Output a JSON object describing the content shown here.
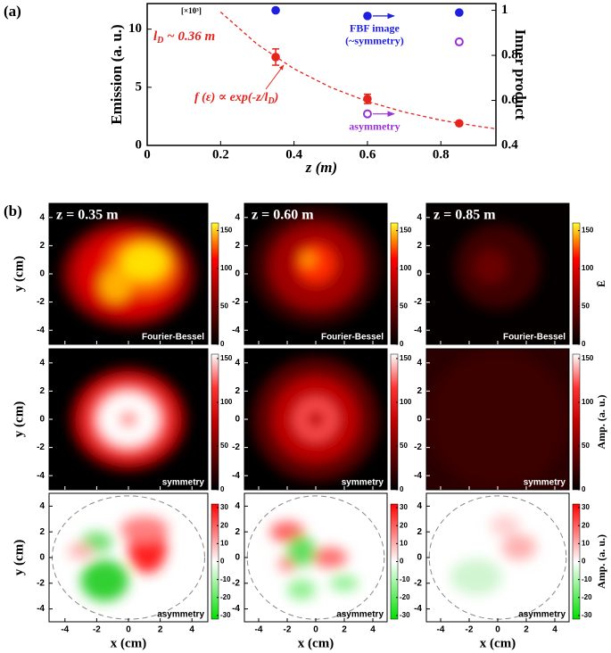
{
  "panel_labels": [
    "(a)",
    "(b)"
  ],
  "chart_data": [
    {
      "type": "scatter",
      "xlabel": "z (m)",
      "ylabel": "Emission (a. u.)",
      "y2label": "Inner product",
      "multiplier": "[×10³]",
      "xlim": [
        0,
        0.95
      ],
      "xticks": [
        0,
        0.2,
        0.4,
        0.6,
        0.8
      ],
      "ylim": [
        0,
        12.2
      ],
      "yticks": [
        0,
        5,
        10
      ],
      "y2lim": [
        0.4,
        1.03
      ],
      "y2ticks": [
        0.4,
        0.6,
        0.8,
        1
      ],
      "annotations": [
        [
          "l",
          "D",
          " ~ 0.36 m"
        ],
        [
          "f (ε) ∝ exp(-z/l",
          "D",
          ")"
        ]
      ],
      "fit": {
        "color": "#e8231c",
        "x": [
          0.2,
          0.3,
          0.4,
          0.5,
          0.6,
          0.7,
          0.8,
          0.9,
          0.95
        ],
        "values": [
          11.47,
          8.69,
          6.59,
          4.99,
          3.78,
          2.87,
          2.17,
          1.65,
          1.43
        ]
      },
      "series": [
        {
          "color": "#e8231c",
          "marker": "filled",
          "x": [
            0.35,
            0.6,
            0.85
          ],
          "values": [
            7.6,
            4.0,
            1.9
          ],
          "errors": [
            0.7,
            0.4,
            0.15
          ]
        },
        {
          "name": "FBF image",
          "annotation": "(~symmetry)",
          "axis": "y2",
          "color": "#1f1fe0",
          "marker": "filled",
          "x": [
            0.35,
            0.6,
            0.85
          ],
          "values": [
            1.0,
            0.975,
            0.99
          ]
        },
        {
          "name": "asymmetry",
          "axis": "y2",
          "color": "#9b30d9",
          "marker": "open",
          "x": [
            0.6,
            0.85
          ],
          "values": [
            0.54,
            0.86
          ]
        }
      ]
    },
    {
      "type": "heatmap",
      "title": "z = 0.35 m",
      "caption": "Fourier-Bessel",
      "ylabel": "y (cm)",
      "xlim": [
        -5,
        5
      ],
      "ylim": [
        -5,
        5
      ],
      "xticks": [
        -4,
        -2,
        0,
        2,
        4
      ],
      "yticks": [
        -4,
        -2,
        0,
        2,
        4
      ],
      "colorbar": {
        "colormap": "black-red-yellow",
        "lim": [
          0,
          160
        ],
        "ticks": [
          0,
          50,
          100,
          150
        ]
      }
    },
    {
      "type": "heatmap",
      "title": "z = 0.60 m",
      "caption": "Fourier-Bessel",
      "xlim": [
        -5,
        5
      ],
      "ylim": [
        -5,
        5
      ],
      "xticks": [
        -4,
        -2,
        0,
        2,
        4
      ],
      "yticks": [
        -4,
        -2,
        0,
        2,
        4
      ],
      "colorbar": {
        "colormap": "black-red-yellow",
        "lim": [
          0,
          160
        ],
        "ticks": [
          0,
          50,
          100,
          150
        ]
      }
    },
    {
      "type": "heatmap",
      "title": "z = 0.85 m",
      "caption": "Fourier-Bessel",
      "xlim": [
        -5,
        5
      ],
      "ylim": [
        -5,
        5
      ],
      "xticks": [
        -4,
        -2,
        0,
        2,
        4
      ],
      "yticks": [
        -4,
        -2,
        0,
        2,
        4
      ],
      "colorbar": {
        "colormap": "black-red-yellow",
        "lim": [
          0,
          160
        ],
        "ticks": [
          0,
          50,
          100,
          150
        ],
        "label": "Ē"
      }
    },
    {
      "type": "heatmap",
      "caption": "symmetry",
      "ylabel": "y (cm)",
      "xlim": [
        -5,
        5
      ],
      "ylim": [
        -5,
        5
      ],
      "xticks": [
        -4,
        -2,
        0,
        2,
        4
      ],
      "yticks": [
        -4,
        -2,
        0,
        2,
        4
      ],
      "colorbar": {
        "colormap": "black-red-white",
        "lim": [
          0,
          155
        ],
        "ticks": [
          0,
          50,
          100,
          150
        ]
      }
    },
    {
      "type": "heatmap",
      "caption": "symmetry",
      "xlim": [
        -5,
        5
      ],
      "ylim": [
        -5,
        5
      ],
      "xticks": [
        -4,
        -2,
        0,
        2,
        4
      ],
      "yticks": [
        -4,
        -2,
        0,
        2,
        4
      ],
      "colorbar": {
        "colormap": "black-red-white",
        "lim": [
          0,
          155
        ],
        "ticks": [
          0,
          50,
          100,
          150
        ]
      }
    },
    {
      "type": "heatmap",
      "caption": "symmetry",
      "xlim": [
        -5,
        5
      ],
      "ylim": [
        -5,
        5
      ],
      "xticks": [
        -4,
        -2,
        0,
        2,
        4
      ],
      "yticks": [
        -4,
        -2,
        0,
        2,
        4
      ],
      "colorbar": {
        "colormap": "black-red-white",
        "lim": [
          0,
          155
        ],
        "ticks": [
          0,
          50,
          100,
          150
        ],
        "label": "Amp. (a. u.)"
      }
    },
    {
      "type": "heatmap",
      "caption": "asymmetry",
      "ylabel": "y (cm)",
      "xlabel": "x (cm)",
      "xlim": [
        -5,
        5
      ],
      "ylim": [
        -5,
        5
      ],
      "xticks": [
        -4,
        -2,
        0,
        2,
        4
      ],
      "yticks": [
        -4,
        -2,
        0,
        2,
        4
      ],
      "colorbar": {
        "colormap": "green-white-red",
        "lim": [
          -32,
          32
        ],
        "ticks": [
          -30,
          -20,
          -10,
          0,
          10,
          20,
          30
        ]
      }
    },
    {
      "type": "heatmap",
      "caption": "asymmetry",
      "xlabel": "x (cm)",
      "xlim": [
        -5,
        5
      ],
      "ylim": [
        -5,
        5
      ],
      "xticks": [
        -4,
        -2,
        0,
        2,
        4
      ],
      "yticks": [
        -4,
        -2,
        0,
        2,
        4
      ],
      "colorbar": {
        "colormap": "green-white-red",
        "lim": [
          -32,
          32
        ],
        "ticks": [
          -30,
          -20,
          -10,
          0,
          10,
          20,
          30
        ]
      }
    },
    {
      "type": "heatmap",
      "caption": "asymmetry",
      "xlabel": "x (cm)",
      "xlim": [
        -5,
        5
      ],
      "ylim": [
        -5,
        5
      ],
      "xticks": [
        -4,
        -2,
        0,
        2,
        4
      ],
      "yticks": [
        -4,
        -2,
        0,
        2,
        4
      ],
      "colorbar": {
        "colormap": "green-white-red",
        "lim": [
          -32,
          32
        ],
        "ticks": [
          -30,
          -20,
          -10,
          0,
          10,
          20,
          30
        ],
        "label": "Amp. (a. u.)"
      }
    }
  ]
}
